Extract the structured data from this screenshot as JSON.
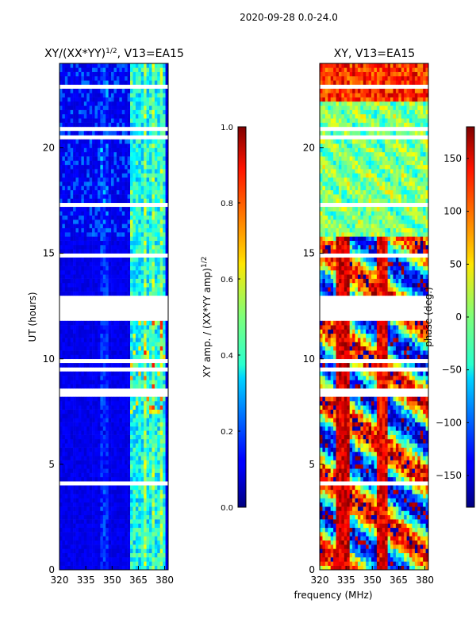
{
  "figure": {
    "suptitle": "2020-09-28 0.0-24.0"
  },
  "chart_data": [
    {
      "type": "heatmap",
      "title": "XY/(XX*YY)",
      "title_exponent": "1/2",
      "title_suffix": ", V13=EA15",
      "xlabel": "",
      "ylabel": "UT (hours)",
      "xlim": [
        320,
        382
      ],
      "ylim": [
        0,
        24
      ],
      "xticks": [
        320,
        335,
        350,
        365,
        380
      ],
      "yticks": [
        0,
        5,
        10,
        15,
        20
      ],
      "colorbar": {
        "label": "XY amp. / (XX*YY amp)",
        "label_exponent": "1/2",
        "range": [
          0.0,
          1.0
        ],
        "ticks": [
          "0.0",
          "0.2",
          "0.4",
          "0.6",
          "0.8",
          "1.0"
        ],
        "colormap": "jet"
      }
    },
    {
      "type": "heatmap",
      "title": "XY, V13=EA15",
      "xlabel": "frequency (MHz)",
      "ylabel": "",
      "xlim": [
        320,
        382
      ],
      "ylim": [
        0,
        24
      ],
      "xticks": [
        320,
        335,
        350,
        365,
        380
      ],
      "yticks": [
        0,
        5,
        10,
        15,
        20
      ],
      "colorbar": {
        "label": "phase (deg.)",
        "range": [
          -180,
          180
        ],
        "ticks": [
          "150",
          "100",
          "50",
          "0",
          "−50",
          "−100",
          "−150"
        ],
        "tick_values": [
          150,
          100,
          50,
          0,
          -50,
          -100,
          -150
        ],
        "colormap": "jet"
      }
    }
  ]
}
